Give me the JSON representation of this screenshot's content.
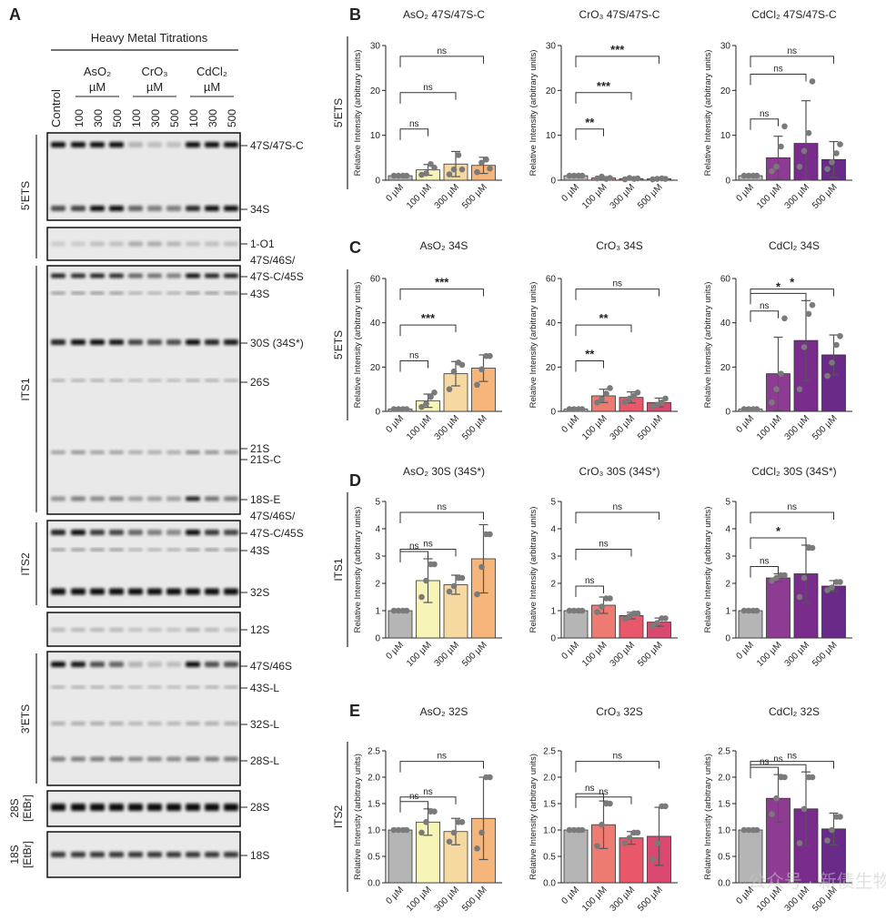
{
  "panel_letters": {
    "A": "A",
    "B": "B",
    "C": "C",
    "D": "D",
    "E": "E"
  },
  "blot": {
    "header": "Heavy Metal Titrations",
    "control_label": "Control",
    "groups": [
      {
        "name": "AsO₂",
        "unit": "µM",
        "doses": [
          "100",
          "300",
          "500"
        ]
      },
      {
        "name": "CrO₃",
        "unit": "µM",
        "doses": [
          "100",
          "300",
          "500"
        ]
      },
      {
        "name": "CdCl₂",
        "unit": "µM",
        "doses": [
          "100",
          "300",
          "500"
        ]
      }
    ],
    "sections": [
      {
        "id": "5ets",
        "label": "5'ETS"
      },
      {
        "id": "its1",
        "label": "ITS1"
      },
      {
        "id": "its2",
        "label": "ITS2"
      },
      {
        "id": "3ets",
        "label": "3'ETS"
      },
      {
        "id": "28s",
        "label": "28S\n[EtBr]"
      },
      {
        "id": "18s",
        "label": "18S\n[EtBr]"
      }
    ],
    "band_labels": {
      "b1": "47S/47S-C",
      "b2": "34S",
      "b3": "1-O1",
      "b4": "47S/46S/",
      "b5": "47S-C/45S",
      "b6": "43S",
      "b7": "30S (34S*)",
      "b8": "26S",
      "b9": "21S",
      "b10": "21S-C",
      "b11": "18S-E",
      "b12": "47S/46S/",
      "b13": "47S-C/45S",
      "b14": "43S",
      "b15": "32S",
      "b16": "12S",
      "b17": "47S/46S",
      "b18": "43S-L",
      "b19": "32S-L",
      "b20": "28S-L",
      "b21": "28S",
      "b22": "18S"
    }
  },
  "chart_common": {
    "ylabel": "Relative Intensity (arbitrary units)",
    "categories": [
      "0 µM",
      "100 µM",
      "300 µM",
      "500 µM"
    ]
  },
  "row_labels": {
    "B": "5'ETS",
    "C": "5'ETS",
    "D": "ITS1",
    "E": "ITS2"
  },
  "colors": {
    "control": "#b5b5b5",
    "AsO2": [
      "#f7f4b8",
      "#f6d9a0",
      "#f5b57b"
    ],
    "CrO3": [
      "#ee7b72",
      "#e8586a",
      "#d9486e"
    ],
    "CdCl2": [
      "#8e3b94",
      "#7a2c8c",
      "#6a2a87"
    ]
  },
  "chart_data": [
    {
      "type": "bar",
      "row": "B",
      "title": "AsO₂ 47S/47S-C",
      "metal": "AsO2",
      "ylim": [
        0,
        30
      ],
      "yticks": [
        "0",
        "10",
        "20",
        "30"
      ],
      "values": [
        1,
        2.3,
        3.6,
        3.3
      ],
      "errors": [
        0,
        1.2,
        2.8,
        1.8
      ],
      "points": [
        [
          1,
          1,
          1,
          1
        ],
        [
          1.2,
          1.5,
          3.6,
          2.8
        ],
        [
          1.3,
          2.4,
          5.6,
          2.4
        ],
        [
          1.8,
          3.9,
          4.6,
          2.6
        ]
      ],
      "sig": [
        {
          "to": 1,
          "text": "ns"
        },
        {
          "to": 2,
          "text": "ns"
        },
        {
          "to": 3,
          "text": "ns"
        }
      ]
    },
    {
      "type": "bar",
      "row": "B",
      "title": "CrO₃ 47S/47S-C",
      "metal": "CrO3",
      "ylim": [
        0,
        30
      ],
      "yticks": [
        "0",
        "10",
        "20",
        "30"
      ],
      "values": [
        1,
        0.5,
        0.35,
        0.3
      ],
      "errors": [
        0,
        0.2,
        0.15,
        0.1
      ],
      "points": [
        [
          1,
          1,
          1,
          1
        ],
        [
          0.4,
          0.8,
          0.3,
          0.5
        ],
        [
          0.2,
          0.5,
          0.3,
          0.4
        ],
        [
          0.2,
          0.3,
          0.4,
          0.3
        ]
      ],
      "sig": [
        {
          "to": 1,
          "text": "**"
        },
        {
          "to": 2,
          "text": "***"
        },
        {
          "to": 3,
          "text": "***"
        }
      ]
    },
    {
      "type": "bar",
      "row": "B",
      "title": "CdCl₂ 47S/47S-C",
      "metal": "CdCl2",
      "ylim": [
        0,
        30
      ],
      "yticks": [
        "0",
        "10",
        "20",
        "30"
      ],
      "values": [
        1,
        5,
        8.2,
        4.6
      ],
      "errors": [
        0,
        4.8,
        9.5,
        4
      ],
      "points": [
        [
          1,
          1,
          1,
          1
        ],
        [
          2,
          3,
          7.5,
          12
        ],
        [
          3,
          6.5,
          10.5,
          22
        ],
        [
          2.5,
          4,
          6,
          8
        ]
      ],
      "sig": [
        {
          "to": 1,
          "text": "ns"
        },
        {
          "to": 2,
          "text": "ns"
        },
        {
          "to": 3,
          "text": "ns"
        }
      ]
    },
    {
      "type": "bar",
      "row": "C",
      "title": "AsO₂ 34S",
      "metal": "AsO2",
      "ylim": [
        0,
        60
      ],
      "yticks": [
        "0",
        "20",
        "40",
        "60"
      ],
      "values": [
        1,
        4.8,
        17,
        19.5
      ],
      "errors": [
        0,
        3,
        5.5,
        6
      ],
      "points": [
        [
          1,
          1,
          1,
          1
        ],
        [
          2,
          3.5,
          6.5,
          8.5
        ],
        [
          10,
          18,
          22,
          21
        ],
        [
          12,
          19,
          25,
          25
        ]
      ],
      "sig": [
        {
          "to": 1,
          "text": "ns"
        },
        {
          "to": 2,
          "text": "***"
        },
        {
          "to": 3,
          "text": "***"
        }
      ]
    },
    {
      "type": "bar",
      "row": "C",
      "title": "CrO₃ 34S",
      "metal": "CrO3",
      "ylim": [
        0,
        60
      ],
      "yticks": [
        "0",
        "20",
        "40",
        "60"
      ],
      "values": [
        1,
        7,
        6.3,
        4
      ],
      "errors": [
        0,
        3,
        2.5,
        2
      ],
      "points": [
        [
          1,
          1,
          1,
          1
        ],
        [
          4,
          5.5,
          8,
          10.5
        ],
        [
          4.2,
          5.8,
          7,
          8.5
        ],
        [
          2.2,
          3,
          4,
          5.8
        ]
      ],
      "sig": [
        {
          "to": 1,
          "text": "**"
        },
        {
          "to": 2,
          "text": "**"
        },
        {
          "to": 3,
          "text": "ns"
        }
      ]
    },
    {
      "type": "bar",
      "row": "C",
      "title": "CdCl₂ 34S",
      "metal": "CdCl2",
      "ylim": [
        0,
        60
      ],
      "yticks": [
        "0",
        "20",
        "40",
        "60"
      ],
      "values": [
        1,
        17,
        32,
        25.5
      ],
      "errors": [
        0,
        16.5,
        18,
        9
      ],
      "points": [
        [
          1,
          1,
          1,
          1
        ],
        [
          4,
          10,
          17,
          42
        ],
        [
          10,
          29,
          44,
          48
        ],
        [
          16,
          22,
          30,
          34
        ]
      ],
      "sig": [
        {
          "to": 1,
          "text": "ns"
        },
        {
          "to": 2,
          "text": "*"
        },
        {
          "to": 3,
          "text": "*"
        }
      ]
    },
    {
      "type": "bar",
      "row": "D",
      "title": "AsO₂ 30S (34S*)",
      "metal": "AsO2",
      "ylim": [
        0,
        5
      ],
      "yticks": [
        "0",
        "1",
        "2",
        "3",
        "4",
        "5"
      ],
      "values": [
        1,
        2.1,
        1.95,
        2.9
      ],
      "errors": [
        0,
        0.8,
        0.35,
        1.25
      ],
      "points": [
        [
          1,
          1,
          1,
          1
        ],
        [
          1.5,
          2.1,
          2.7,
          2.7
        ],
        [
          1.7,
          1.9,
          2.2,
          2.2
        ],
        [
          1.6,
          2.6,
          3.8,
          3.8
        ]
      ],
      "sig": [
        {
          "to": 1,
          "text": "ns"
        },
        {
          "to": 2,
          "text": "ns"
        },
        {
          "to": 3,
          "text": "ns"
        }
      ]
    },
    {
      "type": "bar",
      "row": "D",
      "title": "CrO₃ 30S (34S*)",
      "metal": "CrO3",
      "ylim": [
        0,
        5
      ],
      "yticks": [
        "0",
        "1",
        "2",
        "3",
        "4",
        "5"
      ],
      "values": [
        1,
        1.2,
        0.82,
        0.58
      ],
      "errors": [
        0,
        0.3,
        0.12,
        0.15
      ],
      "points": [
        [
          1,
          1,
          1,
          1
        ],
        [
          0.95,
          1.15,
          1.45,
          1.45
        ],
        [
          0.7,
          0.8,
          0.9,
          0.9
        ],
        [
          0.45,
          0.55,
          0.72,
          0.72
        ]
      ],
      "sig": [
        {
          "to": 1,
          "text": "ns"
        },
        {
          "to": 2,
          "text": "ns"
        },
        {
          "to": 3,
          "text": "ns"
        }
      ]
    },
    {
      "type": "bar",
      "row": "D",
      "title": "CdCl₂ 30S (34S*)",
      "metal": "CdCl2",
      "ylim": [
        0,
        5
      ],
      "yticks": [
        "0",
        "1",
        "2",
        "3",
        "4",
        "5"
      ],
      "values": [
        1,
        2.2,
        2.35,
        1.9
      ],
      "errors": [
        0,
        0.15,
        1.05,
        0.2
      ],
      "points": [
        [
          1,
          1,
          1,
          1
        ],
        [
          2.1,
          2.2,
          2.3,
          2.3
        ],
        [
          1.5,
          2.2,
          3.3,
          3.3
        ],
        [
          1.75,
          1.85,
          2.05,
          2.05
        ]
      ],
      "sig": [
        {
          "to": 1,
          "text": "ns"
        },
        {
          "to": 2,
          "text": "*"
        },
        {
          "to": 3,
          "text": "ns"
        }
      ]
    },
    {
      "type": "bar",
      "row": "E",
      "title": "AsO₂ 32S",
      "metal": "AsO2",
      "ylim": [
        0,
        2.5
      ],
      "yticks": [
        "0.0",
        "0.5",
        "1.0",
        "1.5",
        "2.0",
        "2.5"
      ],
      "values": [
        1,
        1.15,
        0.97,
        1.22
      ],
      "errors": [
        0,
        0.25,
        0.25,
        0.78
      ],
      "points": [
        [
          1,
          1,
          1,
          1
        ],
        [
          0.95,
          1.15,
          1.35,
          1.35
        ],
        [
          0.78,
          0.95,
          1.15,
          1.15
        ],
        [
          0.65,
          0.95,
          2.0,
          2.0
        ]
      ],
      "sig": [
        {
          "to": 1,
          "text": "ns"
        },
        {
          "to": 2,
          "text": "ns"
        },
        {
          "to": 3,
          "text": "ns"
        }
      ]
    },
    {
      "type": "bar",
      "row": "E",
      "title": "CrO₃ 32S",
      "metal": "CrO3",
      "ylim": [
        0,
        2.5
      ],
      "yticks": [
        "0.0",
        "0.5",
        "1.0",
        "1.5",
        "2.0",
        "2.5"
      ],
      "values": [
        1,
        1.1,
        0.85,
        0.88
      ],
      "errors": [
        0,
        0.45,
        0.12,
        0.55
      ],
      "points": [
        [
          1,
          1,
          1,
          1
        ],
        [
          0.7,
          1.1,
          1.5,
          1.5
        ],
        [
          0.75,
          0.85,
          0.95,
          0.95
        ],
        [
          0.45,
          0.75,
          1.45,
          1.45
        ]
      ],
      "sig": [
        {
          "to": 1,
          "text": "ns"
        },
        {
          "to": 2,
          "text": "ns"
        },
        {
          "to": 3,
          "text": "ns"
        }
      ]
    },
    {
      "type": "bar",
      "row": "E",
      "title": "CdCl₂ 32S",
      "metal": "CdCl2",
      "ylim": [
        0,
        2.5
      ],
      "yticks": [
        "0.0",
        "0.5",
        "1.0",
        "1.5",
        "2.0",
        "2.5"
      ],
      "values": [
        1,
        1.6,
        1.4,
        1.02
      ],
      "errors": [
        0,
        0.45,
        0.7,
        0.3
      ],
      "points": [
        [
          1,
          1,
          1,
          1
        ],
        [
          1.3,
          1.6,
          2.0,
          2.0
        ],
        [
          0.75,
          1.4,
          2.0,
          2.0
        ],
        [
          0.8,
          1.0,
          1.25,
          1.25
        ]
      ],
      "sig": [
        {
          "to": 1,
          "text": "ns"
        },
        {
          "to": 2,
          "text": "ns"
        },
        {
          "to": 3,
          "text": "ns"
        }
      ]
    }
  ],
  "watermark": "公众号 · 新债生物"
}
